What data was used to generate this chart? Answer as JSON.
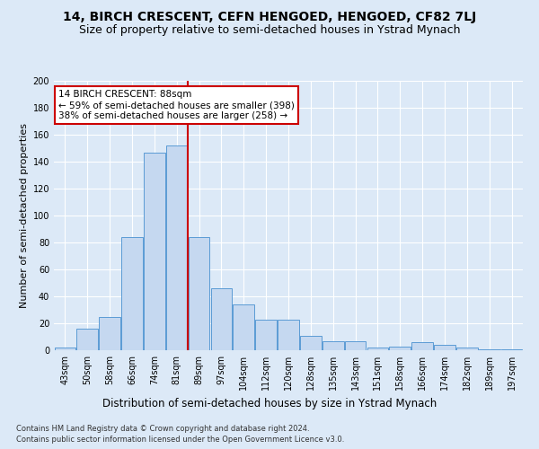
{
  "title": "14, BIRCH CRESCENT, CEFN HENGOED, HENGOED, CF82 7LJ",
  "subtitle": "Size of property relative to semi-detached houses in Ystrad Mynach",
  "xlabel": "Distribution of semi-detached houses by size in Ystrad Mynach",
  "ylabel": "Number of semi-detached properties",
  "footnote1": "Contains HM Land Registry data © Crown copyright and database right 2024.",
  "footnote2": "Contains public sector information licensed under the Open Government Licence v3.0.",
  "categories": [
    "43sqm",
    "50sqm",
    "58sqm",
    "66sqm",
    "74sqm",
    "81sqm",
    "89sqm",
    "97sqm",
    "104sqm",
    "112sqm",
    "120sqm",
    "128sqm",
    "135sqm",
    "143sqm",
    "151sqm",
    "158sqm",
    "166sqm",
    "174sqm",
    "182sqm",
    "189sqm",
    "197sqm"
  ],
  "values": [
    2,
    16,
    25,
    84,
    147,
    152,
    84,
    46,
    34,
    23,
    23,
    11,
    7,
    7,
    2,
    3,
    6,
    4,
    2,
    1,
    1
  ],
  "bar_color": "#c5d8f0",
  "bar_edge_color": "#5b9bd5",
  "vline_color": "#cc0000",
  "vline_x_index": 5.5,
  "annotation_box_text": "14 BIRCH CRESCENT: 88sqm\n← 59% of semi-detached houses are smaller (398)\n38% of semi-detached houses are larger (258) →",
  "annotation_box_color": "#cc0000",
  "annotation_box_bg": "#ffffff",
  "ylim": [
    0,
    200
  ],
  "yticks": [
    0,
    20,
    40,
    60,
    80,
    100,
    120,
    140,
    160,
    180,
    200
  ],
  "background_color": "#dce9f7",
  "grid_color": "#ffffff",
  "title_fontsize": 10,
  "subtitle_fontsize": 9,
  "ylabel_fontsize": 8,
  "xlabel_fontsize": 8.5,
  "tick_fontsize": 7,
  "annot_fontsize": 7.5,
  "footnote_fontsize": 6
}
